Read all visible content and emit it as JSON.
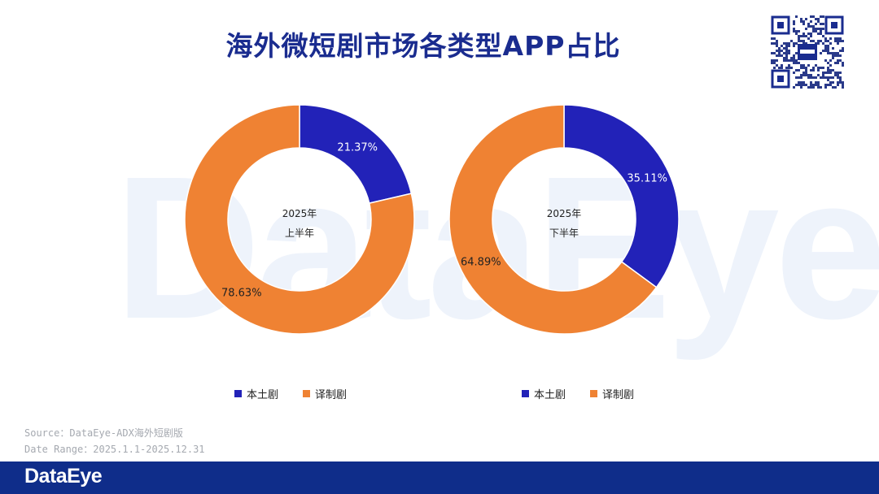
{
  "title": "海外微短剧市场各类型APP占比",
  "watermark": "DataEye",
  "colors": {
    "domestic": "#2222b8",
    "translated": "#ef8233",
    "title": "#1a2c8f",
    "footer": "#0f2d8a"
  },
  "chart_data": [
    {
      "type": "pie",
      "center_label": [
        "2025年",
        "上半年"
      ],
      "categories": [
        "本土剧",
        "译制剧"
      ],
      "values": [
        21.37,
        78.63
      ],
      "data_labels": [
        "21.37%",
        "78.63%"
      ],
      "legend": [
        "本土剧",
        "译制剧"
      ],
      "legend_placement": "bottom"
    },
    {
      "type": "pie",
      "center_label": [
        "2025年",
        "下半年"
      ],
      "categories": [
        "本土剧",
        "译制剧"
      ],
      "values": [
        35.11,
        64.89
      ],
      "data_labels": [
        "35.11%",
        "64.89%"
      ],
      "legend": [
        "本土剧",
        "译制剧"
      ],
      "legend_placement": "bottom"
    }
  ],
  "source_line": "Source：DataEye-ADX海外短剧版",
  "date_line": "Date Range：2025.1.1-2025.12.31",
  "footer_logo": "DataEye",
  "qr_icon": "qr-code-icon"
}
